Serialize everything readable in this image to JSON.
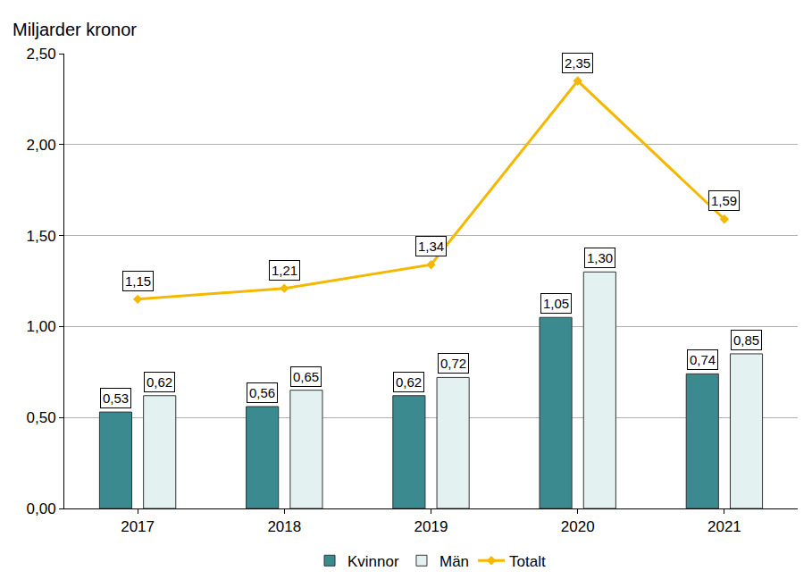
{
  "chart_data": {
    "type": "bar",
    "y_label": "Miljarder kronor",
    "categories": [
      "2017",
      "2018",
      "2019",
      "2020",
      "2021"
    ],
    "series": [
      {
        "name": "Kvinnor",
        "type": "bar",
        "color": "#3a8a8f",
        "values": [
          0.53,
          0.56,
          0.62,
          1.05,
          0.74
        ],
        "value_labels": [
          "0,53",
          "0,56",
          "0,62",
          "1,05",
          "0,74"
        ]
      },
      {
        "name": "Män",
        "type": "bar",
        "color": "#e3f2f1",
        "values": [
          0.62,
          0.65,
          0.72,
          1.3,
          0.85
        ],
        "value_labels": [
          "0,62",
          "0,65",
          "0,72",
          "1,30",
          "0,85"
        ]
      },
      {
        "name": "Totalt",
        "type": "line",
        "color": "#f5b800",
        "marker": "diamond",
        "values": [
          1.15,
          1.21,
          1.34,
          2.35,
          1.59
        ],
        "value_labels": [
          "1,15",
          "1,21",
          "1,34",
          "2,35",
          "1,59"
        ]
      }
    ],
    "ylim": [
      0,
      2.5
    ],
    "yticks": [
      {
        "value": 0,
        "label": "0,00"
      },
      {
        "value": 0.5,
        "label": "0,50"
      },
      {
        "value": 1,
        "label": "1,00"
      },
      {
        "value": 1.5,
        "label": "1,50"
      },
      {
        "value": 2,
        "label": "2,00"
      },
      {
        "value": 2.5,
        "label": "2,50"
      }
    ],
    "grid": true,
    "legend": "bottom",
    "data_labels": true
  }
}
